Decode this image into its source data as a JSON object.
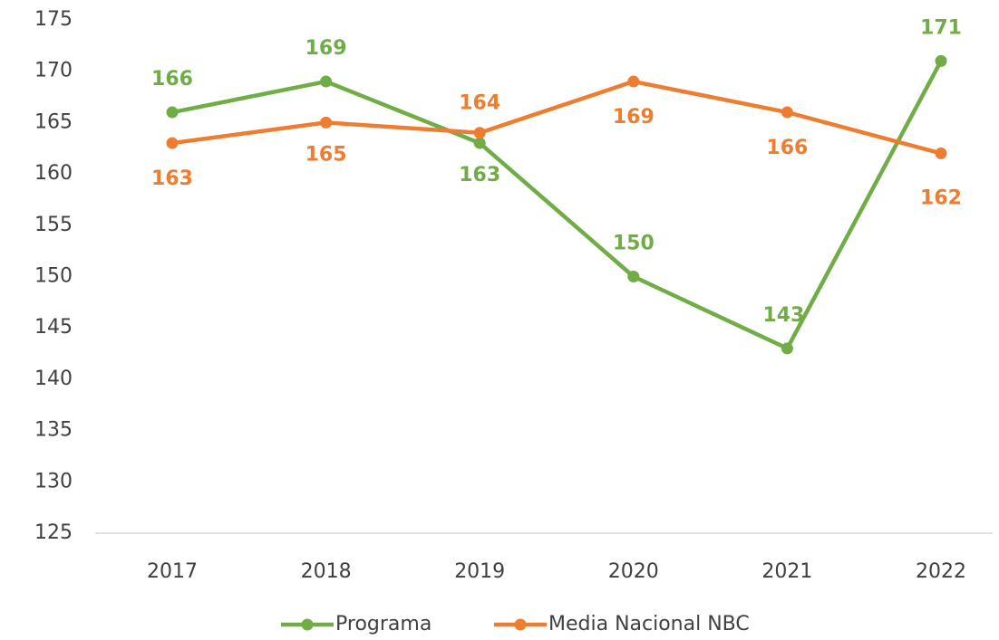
{
  "chart_data": {
    "type": "line",
    "categories": [
      "2017",
      "2018",
      "2019",
      "2020",
      "2021",
      "2022"
    ],
    "series": [
      {
        "name": "Programa",
        "color": "#70ad47",
        "values": [
          166,
          169,
          163,
          150,
          143,
          171
        ]
      },
      {
        "name": "Media Nacional NBC",
        "color": "#ed7d31",
        "values": [
          163,
          165,
          164,
          169,
          166,
          162
        ]
      }
    ],
    "ylim": [
      125,
      175
    ],
    "yticks": [
      125,
      130,
      135,
      140,
      145,
      150,
      155,
      160,
      165,
      170,
      175
    ],
    "grid": false,
    "legend": "bottom"
  }
}
